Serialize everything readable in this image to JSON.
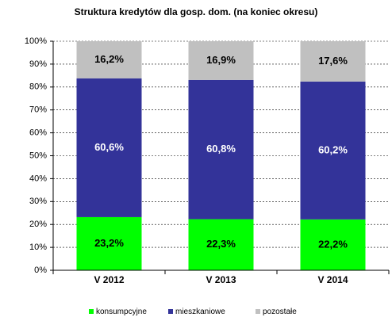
{
  "chart_data": {
    "type": "stacked_bar",
    "title": "Struktura kredytów dla gosp. dom. (na koniec okresu)",
    "categories": [
      "V 2012",
      "V 2013",
      "V 2014"
    ],
    "series": [
      {
        "name": "konsumpcyjne",
        "color": "#00ff00",
        "label_color": "#000000",
        "values": [
          23.2,
          22.3,
          22.2
        ],
        "value_labels": [
          "23,2%",
          "22,3%",
          "22,2%"
        ]
      },
      {
        "name": "mieszkaniowe",
        "color": "#333399",
        "label_color": "#ffffff",
        "values": [
          60.6,
          60.8,
          60.2
        ],
        "value_labels": [
          "60,6%",
          "60,8%",
          "60,2%"
        ]
      },
      {
        "name": "pozostałe",
        "color": "#c0c0c0",
        "label_color": "#000000",
        "values": [
          16.2,
          16.9,
          17.6
        ],
        "value_labels": [
          "16,2%",
          "16,9%",
          "17,6%"
        ]
      }
    ],
    "ylim": [
      0,
      100
    ],
    "yticks": [
      {
        "value": 0,
        "label": "0%"
      },
      {
        "value": 10,
        "label": "10%"
      },
      {
        "value": 20,
        "label": "20%"
      },
      {
        "value": 30,
        "label": "30%"
      },
      {
        "value": 40,
        "label": "40%"
      },
      {
        "value": 50,
        "label": "50%"
      },
      {
        "value": 60,
        "label": "60%"
      },
      {
        "value": 70,
        "label": "70%"
      },
      {
        "value": 80,
        "label": "80%"
      },
      {
        "value": 90,
        "label": "90%"
      },
      {
        "value": 100,
        "label": "100%"
      }
    ],
    "grid": true,
    "legend": "bottom"
  }
}
